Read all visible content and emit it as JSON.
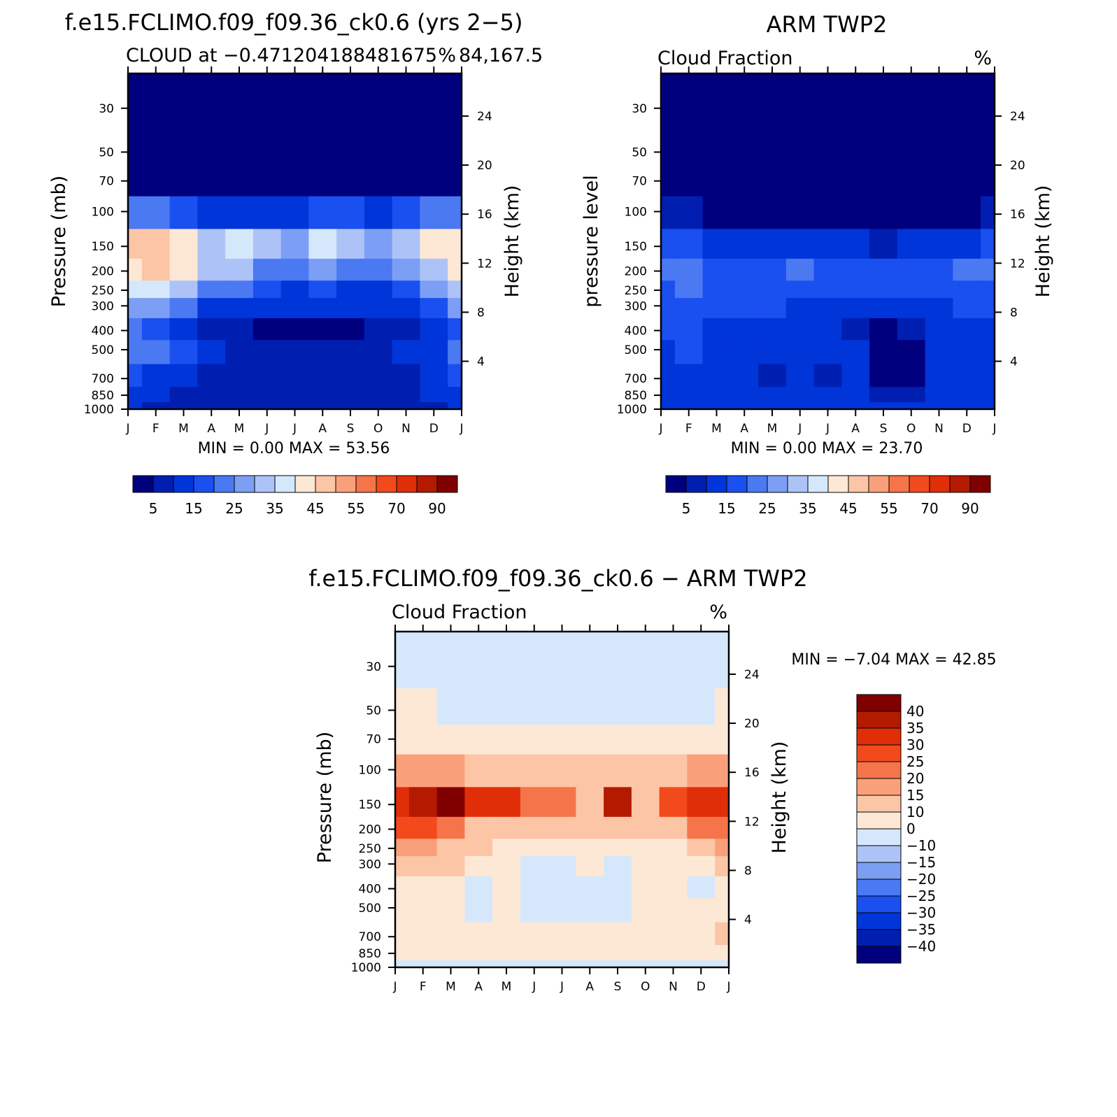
{
  "chart_data": [
    {
      "type": "heatmap",
      "title": "f.e15.FCLIMO.f09_f09.36_ck0.6 (yrs 2−5)",
      "subtitle_left": "CLOUD at −0.471204188481675",
      "subtitle_overlap": "84,167.5",
      "subtitle_right": "%",
      "ylabel": "Pressure (mb)",
      "ylabel_right": "Height (km)",
      "minmax": "MIN =    0.00  MAX =    53.56",
      "x_ticks": [
        "J",
        "F",
        "M",
        "A",
        "M",
        "J",
        "J",
        "A",
        "S",
        "O",
        "N",
        "D",
        "J"
      ],
      "y_ticks": [
        "30",
        "50",
        "70",
        "100",
        "150",
        "200",
        "250",
        "300",
        "400",
        "500",
        "700",
        "850",
        "1000"
      ],
      "y_values": [
        30,
        50,
        70,
        100,
        150,
        200,
        250,
        300,
        400,
        500,
        700,
        850,
        1000
      ],
      "height_ticks": [
        "24",
        "20",
        "16",
        "12",
        "8",
        "4"
      ],
      "colorbar_labels": [
        "5",
        "15",
        "25",
        "35",
        "45",
        "55",
        "70",
        "90"
      ],
      "colorbar_levels": [
        5,
        10,
        15,
        20,
        25,
        30,
        35,
        40,
        45,
        50,
        55,
        60,
        70,
        80,
        90
      ],
      "colorbar_colors": [
        "#00007f",
        "#001fb0",
        "#0035d9",
        "#1a4ff0",
        "#4a79f2",
        "#7c9ff5",
        "#adc3f8",
        "#d5e8fb",
        "#fde8d6",
        "#fcc5a6",
        "#f9a07a",
        "#f6744a",
        "#f24a1c",
        "#df2e08",
        "#b31a00",
        "#800000"
      ],
      "z_rows": [
        [
          1,
          1,
          1,
          1,
          1,
          1,
          1,
          1,
          1,
          1,
          1,
          1,
          1
        ],
        [
          1,
          1,
          1,
          1,
          1,
          1,
          1,
          1,
          1,
          1,
          1,
          1,
          1
        ],
        [
          3,
          2,
          1,
          1,
          1,
          1,
          1,
          1,
          1,
          1,
          1,
          2,
          3
        ],
        [
          24,
          20,
          16,
          12,
          14,
          12,
          10,
          18,
          16,
          12,
          16,
          20,
          24
        ],
        [
          46,
          48,
          42,
          34,
          36,
          30,
          28,
          36,
          34,
          28,
          32,
          40,
          44
        ],
        [
          44,
          46,
          40,
          32,
          30,
          24,
          22,
          26,
          24,
          22,
          26,
          34,
          42
        ],
        [
          36,
          36,
          30,
          22,
          20,
          16,
          14,
          16,
          14,
          14,
          18,
          26,
          34
        ],
        [
          28,
          26,
          22,
          14,
          12,
          10,
          10,
          10,
          10,
          10,
          12,
          18,
          26
        ],
        [
          20,
          18,
          14,
          8,
          6,
          4,
          4,
          4,
          4,
          6,
          8,
          12,
          18
        ],
        [
          22,
          20,
          16,
          10,
          8,
          6,
          6,
          6,
          6,
          8,
          10,
          14,
          20
        ],
        [
          18,
          14,
          10,
          8,
          8,
          8,
          8,
          8,
          8,
          8,
          8,
          10,
          16
        ],
        [
          14,
          10,
          8,
          8,
          6,
          6,
          6,
          6,
          6,
          6,
          8,
          10,
          12
        ],
        [
          10,
          8,
          6,
          6,
          6,
          6,
          6,
          6,
          6,
          6,
          6,
          6,
          10
        ]
      ]
    },
    {
      "type": "heatmap",
      "title": "ARM TWP2",
      "subtitle_left": "Cloud Fraction",
      "subtitle_right": "%",
      "ylabel": "pressure level",
      "ylabel_right": "Height (km)",
      "minmax": "MIN =    0.00  MAX =    23.70",
      "x_ticks": [
        "J",
        "F",
        "M",
        "A",
        "M",
        "J",
        "J",
        "A",
        "S",
        "O",
        "N",
        "D",
        "J"
      ],
      "y_ticks": [
        "30",
        "50",
        "70",
        "100",
        "150",
        "200",
        "250",
        "300",
        "400",
        "500",
        "700",
        "850",
        "1000"
      ],
      "y_values": [
        30,
        50,
        70,
        100,
        150,
        200,
        250,
        300,
        400,
        500,
        700,
        850,
        1000
      ],
      "height_ticks": [
        "24",
        "20",
        "16",
        "12",
        "8",
        "4"
      ],
      "colorbar_labels": [
        "5",
        "15",
        "25",
        "35",
        "45",
        "55",
        "70",
        "90"
      ],
      "colorbar_levels": [
        5,
        10,
        15,
        20,
        25,
        30,
        35,
        40,
        45,
        50,
        55,
        60,
        70,
        80,
        90
      ],
      "colorbar_colors": [
        "#00007f",
        "#001fb0",
        "#0035d9",
        "#1a4ff0",
        "#4a79f2",
        "#7c9ff5",
        "#adc3f8",
        "#d5e8fb",
        "#fde8d6",
        "#fcc5a6",
        "#f9a07a",
        "#f6744a",
        "#f24a1c",
        "#df2e08",
        "#b31a00",
        "#800000"
      ],
      "z_rows": [
        [
          1,
          1,
          1,
          1,
          1,
          1,
          1,
          1,
          1,
          1,
          1,
          1,
          1
        ],
        [
          1,
          1,
          1,
          1,
          1,
          1,
          1,
          1,
          1,
          1,
          1,
          1,
          1
        ],
        [
          1,
          1,
          1,
          1,
          1,
          1,
          1,
          1,
          1,
          1,
          1,
          1,
          1
        ],
        [
          8,
          6,
          4,
          2,
          2,
          2,
          2,
          2,
          2,
          2,
          2,
          4,
          8
        ],
        [
          16,
          16,
          14,
          12,
          12,
          10,
          10,
          10,
          8,
          10,
          12,
          14,
          16
        ],
        [
          22,
          22,
          18,
          16,
          18,
          20,
          18,
          16,
          18,
          16,
          18,
          20,
          20
        ],
        [
          18,
          20,
          18,
          18,
          18,
          18,
          18,
          18,
          18,
          18,
          18,
          18,
          18
        ],
        [
          16,
          18,
          16,
          16,
          16,
          14,
          14,
          14,
          12,
          12,
          14,
          16,
          18
        ],
        [
          16,
          16,
          14,
          12,
          10,
          10,
          10,
          8,
          4,
          6,
          10,
          12,
          14
        ],
        [
          14,
          16,
          14,
          12,
          10,
          10,
          10,
          10,
          4,
          4,
          10,
          12,
          14
        ],
        [
          14,
          14,
          12,
          10,
          6,
          10,
          6,
          10,
          4,
          4,
          10,
          12,
          14
        ],
        [
          12,
          12,
          10,
          10,
          10,
          10,
          10,
          10,
          8,
          8,
          10,
          12,
          14
        ],
        [
          14,
          14,
          14,
          14,
          14,
          14,
          14,
          14,
          14,
          14,
          14,
          14,
          14
        ]
      ]
    },
    {
      "type": "heatmap",
      "title": "f.e15.FCLIMO.f09_f09.36_ck0.6 − ARM TWP2",
      "subtitle_left": "Cloud Fraction",
      "subtitle_right": "%",
      "ylabel": "Pressure (mb)",
      "ylabel_right": "Height (km)",
      "minmax": "MIN =   −7.04  MAX =    42.85",
      "x_ticks": [
        "J",
        "F",
        "M",
        "A",
        "M",
        "J",
        "J",
        "A",
        "S",
        "O",
        "N",
        "D",
        "J"
      ],
      "y_ticks": [
        "30",
        "50",
        "70",
        "100",
        "150",
        "200",
        "250",
        "300",
        "400",
        "500",
        "700",
        "850",
        "1000"
      ],
      "y_values": [
        30,
        50,
        70,
        100,
        150,
        200,
        250,
        300,
        400,
        500,
        700,
        850,
        1000
      ],
      "height_ticks": [
        "24",
        "20",
        "16",
        "12",
        "8",
        "4"
      ],
      "colorbar_labels": [
        "40",
        "35",
        "30",
        "25",
        "20",
        "15",
        "10",
        "0",
        "−10",
        "−15",
        "−20",
        "−25",
        "−30",
        "−35",
        "−40"
      ],
      "colorbar_levels": [
        -40,
        -35,
        -30,
        -25,
        -20,
        -15,
        -10,
        0,
        10,
        15,
        20,
        25,
        30,
        35,
        40
      ],
      "colorbar_colors": [
        "#00007f",
        "#001fb0",
        "#0035d9",
        "#1a4ff0",
        "#4a79f2",
        "#7c9ff5",
        "#adc3f8",
        "#d5e8fb",
        "#fde8d6",
        "#fcc5a6",
        "#f9a07a",
        "#f6744a",
        "#f24a1c",
        "#df2e08",
        "#b31a00",
        "#800000"
      ],
      "z_rows": [
        [
          -2,
          -2,
          -2,
          -2,
          -2,
          -2,
          -2,
          -2,
          -2,
          -2,
          -2,
          -2,
          -2
        ],
        [
          2,
          2,
          -2,
          -2,
          -2,
          -2,
          -2,
          -2,
          -2,
          -2,
          -2,
          -2,
          2
        ],
        [
          4,
          4,
          4,
          2,
          2,
          2,
          2,
          2,
          2,
          2,
          2,
          4,
          4
        ],
        [
          16,
          18,
          16,
          14,
          14,
          12,
          12,
          14,
          14,
          12,
          14,
          16,
          16
        ],
        [
          32,
          36,
          42,
          30,
          32,
          20,
          22,
          12,
          36,
          14,
          28,
          30,
          34
        ],
        [
          26,
          26,
          24,
          14,
          14,
          12,
          12,
          10,
          12,
          10,
          12,
          20,
          24
        ],
        [
          18,
          16,
          14,
          10,
          8,
          6,
          6,
          4,
          6,
          6,
          6,
          10,
          16
        ],
        [
          14,
          12,
          10,
          4,
          6,
          -2,
          -2,
          2,
          -2,
          4,
          4,
          4,
          12
        ],
        [
          8,
          6,
          2,
          -2,
          2,
          -2,
          -2,
          -2,
          -2,
          2,
          2,
          -2,
          6
        ],
        [
          6,
          4,
          4,
          -2,
          2,
          -2,
          -2,
          -2,
          -2,
          2,
          2,
          2,
          6
        ],
        [
          4,
          4,
          4,
          4,
          4,
          4,
          4,
          2,
          4,
          4,
          4,
          4,
          12
        ],
        [
          4,
          4,
          4,
          4,
          4,
          4,
          4,
          4,
          4,
          4,
          4,
          4,
          4
        ],
        [
          -2,
          -2,
          -2,
          -2,
          -2,
          -2,
          -2,
          -2,
          -2,
          -2,
          -2,
          -2,
          -2
        ]
      ]
    }
  ]
}
